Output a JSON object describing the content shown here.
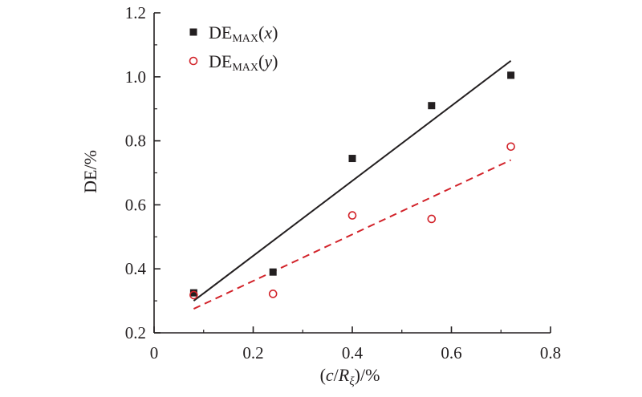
{
  "chart_data": {
    "type": "scatter",
    "title": "",
    "xlabel": {
      "pre": "(",
      "var": "c",
      "slash": "/",
      "var2": "R",
      "sub": "ξ",
      "post": ")/%"
    },
    "ylabel": "DE/%",
    "xlim": [
      0,
      0.8
    ],
    "ylim": [
      0.2,
      1.2
    ],
    "x_ticks": [
      0,
      0.2,
      0.4,
      0.6,
      0.8
    ],
    "x_tick_labels": [
      "0",
      "0.2",
      "0.4",
      "0.6",
      "0.8"
    ],
    "y_ticks": [
      0.2,
      0.4,
      0.6,
      0.8,
      1.0,
      1.2
    ],
    "y_tick_labels": [
      "0.2",
      "0.4",
      "0.6",
      "0.8",
      "1.0",
      "1.2"
    ],
    "grid": false,
    "legend_position": "top-left",
    "series": [
      {
        "legend": {
          "main": "DE",
          "sub": "MAX",
          "arg": "x"
        },
        "marker": "filled-square",
        "color": "#231f20",
        "x": [
          0.08,
          0.24,
          0.4,
          0.56,
          0.72
        ],
        "y": [
          0.325,
          0.39,
          0.745,
          0.91,
          1.005
        ],
        "fit": {
          "style": "solid",
          "x": [
            0.08,
            0.72
          ],
          "y": [
            0.3,
            1.05
          ]
        }
      },
      {
        "legend": {
          "main": "DE",
          "sub": "MAX",
          "arg": "y"
        },
        "marker": "open-circle",
        "color": "#d2232a",
        "x": [
          0.08,
          0.24,
          0.4,
          0.56,
          0.72
        ],
        "y": [
          0.318,
          0.322,
          0.567,
          0.556,
          0.782
        ],
        "fit": {
          "style": "dashed",
          "x": [
            0.08,
            0.72
          ],
          "y": [
            0.275,
            0.74
          ]
        }
      }
    ]
  }
}
